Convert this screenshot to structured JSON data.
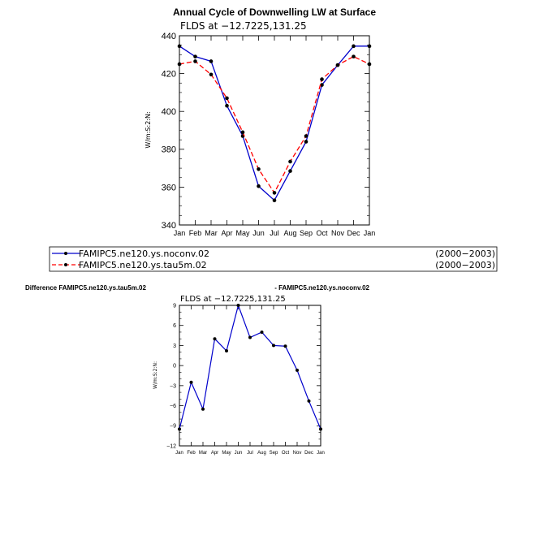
{
  "chart_data": [
    {
      "type": "line",
      "title": "Annual Cycle of Downwelling LW at Surface",
      "subtitle": "FLDS at −12.7225,131.25",
      "ylabel": "W/m:S:2:N:",
      "xlabel": "",
      "categories": [
        "Jan",
        "Feb",
        "Mar",
        "Apr",
        "May",
        "Jun",
        "Jul",
        "Aug",
        "Sep",
        "Oct",
        "Nov",
        "Dec",
        "Jan"
      ],
      "ylim": [
        340,
        440
      ],
      "yticks": [
        "340",
        "360",
        "380",
        "400",
        "420",
        "440"
      ],
      "series": [
        {
          "name": "FAMIPC5.ne120.ys.noconv.02",
          "period": "(2000−2003)",
          "color": "#0000cc",
          "dash": "solid",
          "values": [
            434.5,
            429,
            426.5,
            403,
            387,
            360.5,
            353,
            368.5,
            384,
            414,
            424.5,
            434.5,
            434.5
          ]
        },
        {
          "name": "FAMIPC5.ne120.ys.tau5m.02",
          "period": "(2000−2003)",
          "color": "#ff0000",
          "dash": "dashed",
          "values": [
            425,
            426.5,
            419.5,
            407,
            389,
            369.5,
            357,
            373.5,
            387,
            417,
            424.5,
            429,
            425
          ]
        }
      ],
      "legend": "below"
    },
    {
      "type": "line",
      "title": "Difference FAMIPC5.ne120.ys.tau5m.02",
      "title_right": "- FAMIPC5.ne120.ys.noconv.02",
      "subtitle": "FLDS at −12.7225,131.25",
      "ylabel": "W/m:S:2:N:",
      "xlabel": "",
      "categories": [
        "Jan",
        "Feb",
        "Mar",
        "Apr",
        "May",
        "Jun",
        "Jul",
        "Aug",
        "Sep",
        "Oct",
        "Nov",
        "Dec",
        "Jan"
      ],
      "ylim": [
        -12,
        9
      ],
      "yticks": [
        "−12",
        "−9",
        "−6",
        "−3",
        "0",
        "3",
        "6",
        "9"
      ],
      "series": [
        {
          "color": "#0000cc",
          "values": [
            -9.5,
            -2.5,
            -6.5,
            4,
            2.2,
            9,
            4.2,
            5,
            3,
            2.9,
            -0.7,
            -5.3,
            -9.5
          ]
        }
      ]
    }
  ]
}
